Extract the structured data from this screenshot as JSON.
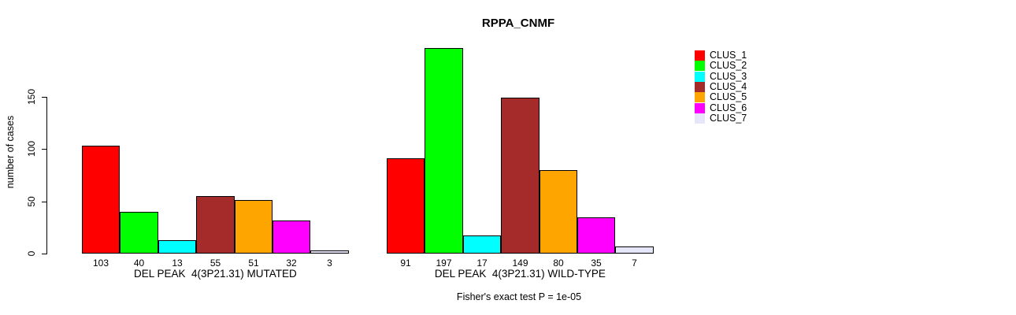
{
  "chart_data": {
    "type": "bar",
    "title": "RPPA_CNMF",
    "ylabel": "number of cases",
    "xlabel": "",
    "y_ticks": [
      0,
      50,
      100,
      150
    ],
    "ylim": [
      0,
      200
    ],
    "grid": false,
    "legend_position": "right",
    "background": "#ffffff",
    "clusters": [
      {
        "name": "CLUS_1",
        "color": "#FF0000"
      },
      {
        "name": "CLUS_2",
        "color": "#00FF00"
      },
      {
        "name": "CLUS_3",
        "color": "#00FFFF"
      },
      {
        "name": "CLUS_4",
        "color": "#A52A2A"
      },
      {
        "name": "CLUS_5",
        "color": "#FFA500"
      },
      {
        "name": "CLUS_6",
        "color": "#FF00FF"
      },
      {
        "name": "CLUS_7",
        "color": "#E6E6FA"
      }
    ],
    "groups": [
      {
        "label": "DEL PEAK  4(3P21.31) MUTATED",
        "values": [
          103,
          40,
          13,
          55,
          51,
          32,
          3
        ]
      },
      {
        "label": "DEL PEAK  4(3P21.31) WILD-TYPE",
        "values": [
          91,
          197,
          17,
          149,
          80,
          35,
          7
        ]
      }
    ],
    "annotation": "Fisher's exact test P = 1e-05"
  }
}
